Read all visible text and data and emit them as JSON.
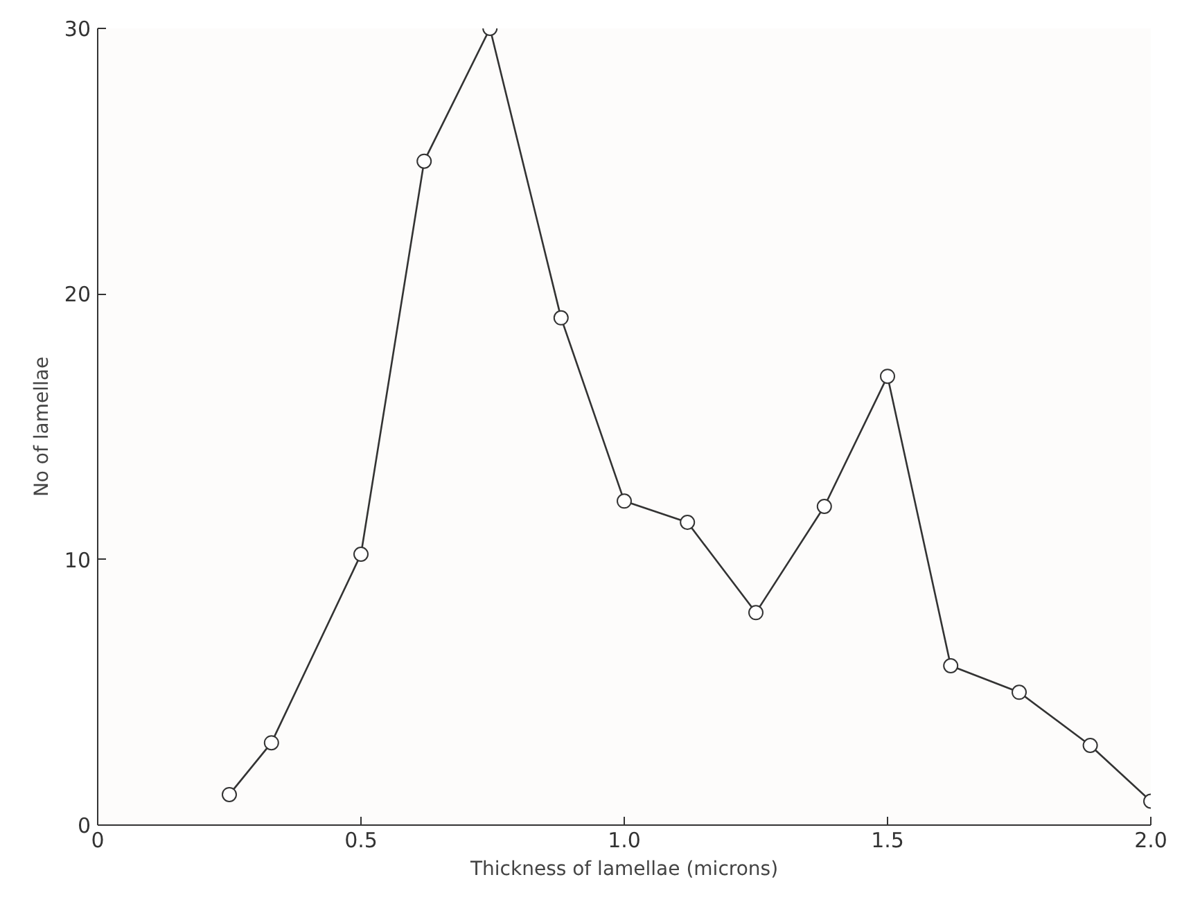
{
  "chart_data": {
    "type": "line",
    "xlabel": "Thickness of lamellae (microns)",
    "ylabel": "No of lamellae",
    "x": [
      0.25,
      0.33,
      0.5,
      0.62,
      0.745,
      0.88,
      1.0,
      1.12,
      1.25,
      1.38,
      1.5,
      1.62,
      1.75,
      1.885,
      2.0
    ],
    "series": [
      {
        "color": "#333333",
        "values": [
          1.15,
          3.1,
          10.2,
          25.0,
          30.0,
          19.1,
          12.2,
          11.4,
          8.0,
          12.0,
          16.9,
          6.0,
          5.0,
          3.0,
          0.9
        ]
      }
    ],
    "xlim": [
      0,
      2.0
    ],
    "ylim": [
      0,
      30
    ],
    "xticks": [
      0,
      0.5,
      {
        "value": 1.0,
        "label": "1.0"
      },
      1.5,
      {
        "value": 2.0,
        "label": "2.0"
      }
    ],
    "yticks": [
      0,
      10,
      20,
      30
    ],
    "grid": false,
    "marker": "circle",
    "line_style": "solid"
  }
}
